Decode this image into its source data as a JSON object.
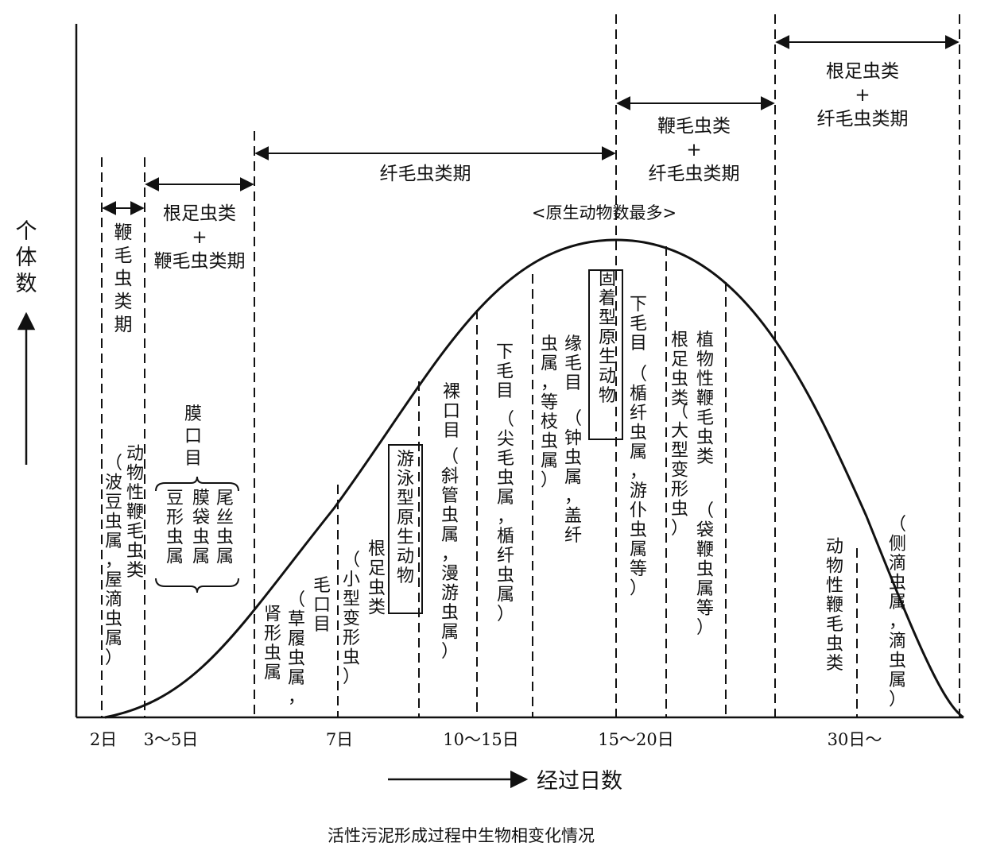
{
  "caption": "活性污泥形成过程中生物相变化情况",
  "y_axis_label": "个体数",
  "x_axis_label": "经过日数",
  "peak_label": "<原生动物数最多>",
  "x_ticks": [
    "2日",
    "3～5日",
    "7日",
    "10～15日",
    "15～20日",
    "30日～"
  ],
  "phases": [
    {
      "label": "鞭毛虫类期"
    },
    {
      "label": "根足虫类\n+\n鞭毛虫类期"
    },
    {
      "label": "纤毛虫类期"
    },
    {
      "label": "鞭毛虫类\n+\n纤毛虫类期"
    },
    {
      "label": "根足虫类\n+\n纤毛虫类期"
    }
  ],
  "organisms": [
    {
      "columns": [
        "动物性鞭毛虫类",
        "（波豆虫属，屋滴虫属）"
      ]
    },
    {
      "heading": "膜口目",
      "columns": [
        "尾丝虫属",
        "膜袋虫属",
        "豆形虫属"
      ]
    },
    {
      "columns": [
        "肾形虫属"
      ]
    },
    {
      "columns": [
        "毛口目",
        "（草履虫属，"
      ]
    },
    {
      "columns": [
        "根足虫类",
        "（小型变形虫）"
      ]
    },
    {
      "boxed": true,
      "columns": [
        "游泳型原生动物"
      ]
    },
    {
      "columns": [
        "裸口目",
        "（斜管虫属，漫游虫属）"
      ]
    },
    {
      "columns": [
        "下毛目",
        "（尖毛虫属，楯纤虫属）"
      ]
    },
    {
      "columns": [
        "缘毛目",
        "（钟虫属，盖纤",
        "虫属，等枝虫属）"
      ]
    },
    {
      "boxed": true,
      "columns": [
        "固着型原生动物"
      ]
    },
    {
      "columns": [
        "下毛目",
        "（楯纤虫属，游仆虫属等）"
      ]
    },
    {
      "columns": [
        "根足虫类",
        "（大型变形虫）"
      ]
    },
    {
      "columns": [
        "植物性鞭毛虫类",
        "（袋鞭虫属等）"
      ]
    },
    {
      "columns": [
        "动物性鞭毛虫类"
      ]
    },
    {
      "columns": [
        "（侧滴虫属，滴虫属）"
      ]
    }
  ]
}
